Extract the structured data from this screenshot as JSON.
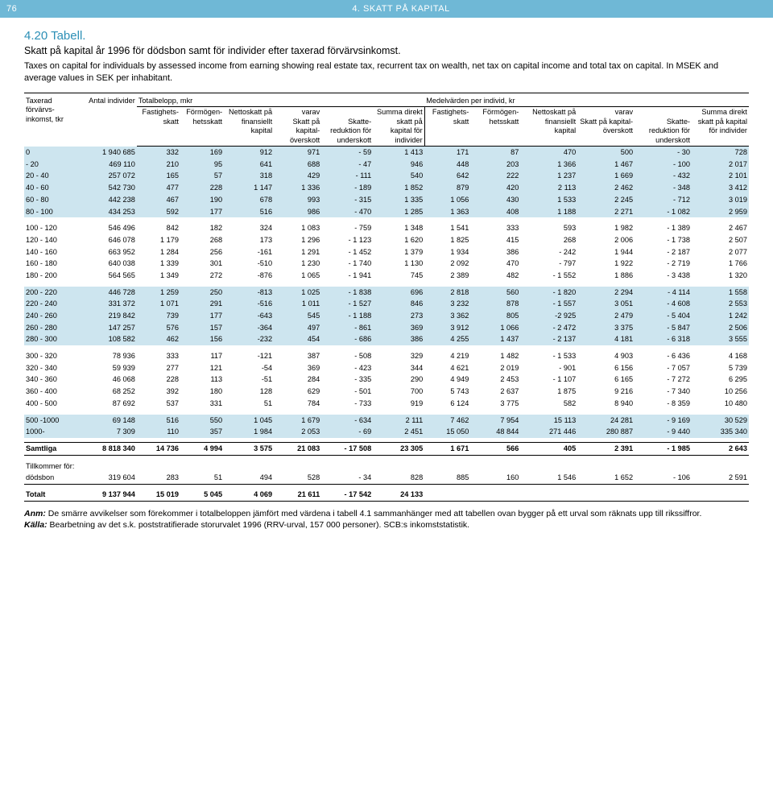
{
  "header": {
    "page_number": "76",
    "section": "4. SKATT PÅ KAPITAL"
  },
  "title": "4.20  Tabell.",
  "subtitle": "Skatt på kapital år 1996 för dödsbon samt för individer efter taxerad förvärvsinkomst.",
  "description": "Taxes on capital for individuals by assessed income from earning showing real estate tax, recurrent tax on wealth, net tax on capital income and total tax on capital. In MSEK and average values in SEK per inhabitant.",
  "head": {
    "taxerad": "Taxerad förvärvs- inkomst, tkr",
    "antal": "Antal individer",
    "total_group": "Totalbelopp, mkr",
    "mean_group": "Medelvärden per individ, kr",
    "fastighets": "Fastighets- skatt",
    "formogen": "Förmögen- hetsskatt",
    "netto": "Nettoskatt på finansiellt kapital",
    "varav": "varav",
    "varav1": "Skatt på kapital- överskott",
    "varav2": "Skatte- reduktion för underskott",
    "summa": "Summa direkt skatt på kapital för individer"
  },
  "rows": [
    {
      "band": true,
      "range": "0",
      "n": "1 940 685",
      "t": [
        "332",
        "169",
        "912",
        "971",
        "- 59",
        "1 413"
      ],
      "m": [
        "171",
        "87",
        "470",
        "500",
        "- 30",
        "728"
      ]
    },
    {
      "band": true,
      "range": "-    20",
      "n": "469 110",
      "t": [
        "210",
        "95",
        "641",
        "688",
        "- 47",
        "946"
      ],
      "m": [
        "448",
        "203",
        "1 366",
        "1 467",
        "- 100",
        "2 017"
      ]
    },
    {
      "band": true,
      "range": "20 -    40",
      "n": "257 072",
      "t": [
        "165",
        "57",
        "318",
        "429",
        "- 111",
        "540"
      ],
      "m": [
        "642",
        "222",
        "1 237",
        "1 669",
        "- 432",
        "2 101"
      ]
    },
    {
      "band": true,
      "range": "40 -    60",
      "n": "542 730",
      "t": [
        "477",
        "228",
        "1 147",
        "1 336",
        "- 189",
        "1 852"
      ],
      "m": [
        "879",
        "420",
        "2 113",
        "2 462",
        "- 348",
        "3 412"
      ]
    },
    {
      "band": true,
      "range": "60 -    80",
      "n": "442 238",
      "t": [
        "467",
        "190",
        "678",
        "993",
        "- 315",
        "1 335"
      ],
      "m": [
        "1 056",
        "430",
        "1 533",
        "2 245",
        "- 712",
        "3 019"
      ]
    },
    {
      "band": true,
      "range": "80 -  100",
      "n": "434 253",
      "t": [
        "592",
        "177",
        "516",
        "986",
        "- 470",
        "1 285"
      ],
      "m": [
        "1 363",
        "408",
        "1 188",
        "2 271",
        "- 1 082",
        "2 959"
      ]
    },
    {
      "spacer": true
    },
    {
      "range": "100 -  120",
      "n": "546 496",
      "t": [
        "842",
        "182",
        "324",
        "1 083",
        "- 759",
        "1 348"
      ],
      "m": [
        "1 541",
        "333",
        "593",
        "1 982",
        "- 1 389",
        "2 467"
      ]
    },
    {
      "range": "120 -  140",
      "n": "646 078",
      "t": [
        "1 179",
        "268",
        "173",
        "1 296",
        "- 1 123",
        "1 620"
      ],
      "m": [
        "1 825",
        "415",
        "268",
        "2 006",
        "- 1 738",
        "2 507"
      ]
    },
    {
      "range": "140 -  160",
      "n": "663 952",
      "t": [
        "1 284",
        "256",
        "-161",
        "1 291",
        "- 1 452",
        "1 379"
      ],
      "m": [
        "1 934",
        "386",
        "- 242",
        "1 944",
        "- 2 187",
        "2 077"
      ]
    },
    {
      "range": "160 -  180",
      "n": "640 038",
      "t": [
        "1 339",
        "301",
        "-510",
        "1 230",
        "- 1 740",
        "1 130"
      ],
      "m": [
        "2 092",
        "470",
        "- 797",
        "1 922",
        "- 2 719",
        "1 766"
      ]
    },
    {
      "range": "180 -  200",
      "n": "564 565",
      "t": [
        "1 349",
        "272",
        "-876",
        "1 065",
        "- 1 941",
        "745"
      ],
      "m": [
        "2 389",
        "482",
        "- 1 552",
        "1 886",
        "- 3 438",
        "1 320"
      ]
    },
    {
      "spacer": true
    },
    {
      "band": true,
      "range": "200 -  220",
      "n": "446 728",
      "t": [
        "1 259",
        "250",
        "-813",
        "1 025",
        "- 1 838",
        "696"
      ],
      "m": [
        "2 818",
        "560",
        "- 1 820",
        "2 294",
        "- 4 114",
        "1 558"
      ]
    },
    {
      "band": true,
      "range": "220 -  240",
      "n": "331 372",
      "t": [
        "1 071",
        "291",
        "-516",
        "1 011",
        "- 1 527",
        "846"
      ],
      "m": [
        "3 232",
        "878",
        "- 1 557",
        "3 051",
        "- 4 608",
        "2 553"
      ]
    },
    {
      "band": true,
      "range": "240 -  260",
      "n": "219 842",
      "t": [
        "739",
        "177",
        "-643",
        "545",
        "- 1 188",
        "273"
      ],
      "m": [
        "3 362",
        "805",
        "-2 925",
        "2 479",
        "- 5 404",
        "1 242"
      ]
    },
    {
      "band": true,
      "range": "260 -  280",
      "n": "147 257",
      "t": [
        "576",
        "157",
        "-364",
        "497",
        "- 861",
        "369"
      ],
      "m": [
        "3 912",
        "1 066",
        "- 2 472",
        "3 375",
        "- 5 847",
        "2 506"
      ]
    },
    {
      "band": true,
      "range": "280 -  300",
      "n": "108 582",
      "t": [
        "462",
        "156",
        "-232",
        "454",
        "- 686",
        "386"
      ],
      "m": [
        "4 255",
        "1 437",
        "- 2 137",
        "4 181",
        "- 6 318",
        "3 555"
      ]
    },
    {
      "spacer": true
    },
    {
      "range": "300 -  320",
      "n": "78 936",
      "t": [
        "333",
        "117",
        "-121",
        "387",
        "- 508",
        "329"
      ],
      "m": [
        "4 219",
        "1 482",
        "- 1 533",
        "4 903",
        "- 6 436",
        "4 168"
      ]
    },
    {
      "range": "320 -  340",
      "n": "59 939",
      "t": [
        "277",
        "121",
        "-54",
        "369",
        "- 423",
        "344"
      ],
      "m": [
        "4 621",
        "2 019",
        "- 901",
        "6 156",
        "- 7 057",
        "5 739"
      ]
    },
    {
      "range": "340 -  360",
      "n": "46 068",
      "t": [
        "228",
        "113",
        "-51",
        "284",
        "- 335",
        "290"
      ],
      "m": [
        "4 949",
        "2 453",
        "- 1 107",
        "6 165",
        "- 7 272",
        "6 295"
      ]
    },
    {
      "range": "360 -  400",
      "n": "68 252",
      "t": [
        "392",
        "180",
        "128",
        "629",
        "- 501",
        "700"
      ],
      "m": [
        "5 743",
        "2 637",
        "1 875",
        "9 216",
        "- 7 340",
        "10 256"
      ]
    },
    {
      "range": "400 -  500",
      "n": "87 692",
      "t": [
        "537",
        "331",
        "51",
        "784",
        "- 733",
        "919"
      ],
      "m": [
        "6 124",
        "3 775",
        "582",
        "8 940",
        "- 8 359",
        "10 480"
      ]
    },
    {
      "spacer": true
    },
    {
      "band": true,
      "range": "500 -1000",
      "n": "69 148",
      "t": [
        "516",
        "550",
        "1 045",
        "1 679",
        "- 634",
        "2 111"
      ],
      "m": [
        "7 462",
        "7 954",
        "15 113",
        "24 281",
        "- 9 169",
        "30 529"
      ]
    },
    {
      "band": true,
      "range": "1000-",
      "n": "7 309",
      "t": [
        "110",
        "357",
        "1 984",
        "2 053",
        "- 69",
        "2 451"
      ],
      "m": [
        "15 050",
        "48 844",
        "271 446",
        "280 887",
        "- 9 440",
        "335 340"
      ]
    }
  ],
  "totals": {
    "samtliga": {
      "label": "Samtliga",
      "n": "8 818 340",
      "t": [
        "14 736",
        "4 994",
        "3 575",
        "21 083",
        "- 17 508",
        "23 305"
      ],
      "m": [
        "1 671",
        "566",
        "405",
        "2 391",
        "- 1 985",
        "2 643"
      ]
    },
    "tillkommer_label": "Tillkommer för:",
    "dodsbon": {
      "label": "dödsbon",
      "n": "319 604",
      "t": [
        "283",
        "51",
        "494",
        "528",
        "- 34",
        "828"
      ],
      "m": [
        "885",
        "160",
        "1 546",
        "1 652",
        "- 106",
        "2 591"
      ]
    },
    "totalt": {
      "label": "Totalt",
      "n": "9 137 944",
      "t": [
        "15 019",
        "5 045",
        "4 069",
        "21 611",
        "- 17 542",
        "24 133"
      ],
      "m": [
        "",
        "",
        "",
        "",
        "",
        ""
      ]
    }
  },
  "note_label": "Anm:",
  "note": " De smärre avvikelser som förekommer i totalbeloppen jämfört med värdena i tabell 4.1 sammanhänger med att tabellen ovan bygger på ett urval som räknats upp till rikssiffror.",
  "source_label": "Källa:",
  "source": " Bearbetning av det s.k. poststratifierade storurvalet 1996 (RRV-urval, 157 000 personer). SCB:s inkomststatistik."
}
